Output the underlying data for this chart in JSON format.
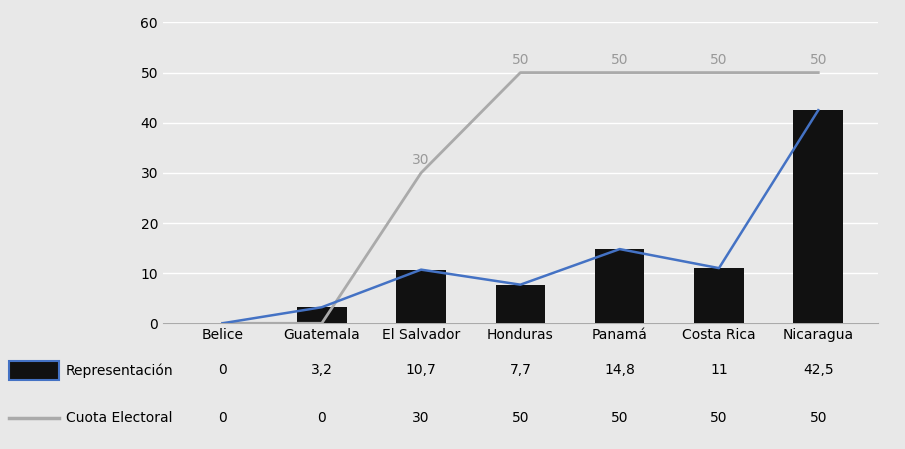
{
  "categories": [
    "Belice",
    "Guatemala",
    "El Salvador",
    "Honduras",
    "Panamá",
    "Costa Rica",
    "Nicaragua"
  ],
  "representacion": [
    0,
    3.2,
    10.7,
    7.7,
    14.8,
    11,
    42.5
  ],
  "cuota_electoral": [
    0,
    0,
    30,
    50,
    50,
    50,
    50
  ],
  "bar_color": "#111111",
  "line_rep_color": "#4472c4",
  "line_cuota_color": "#aaaaaa",
  "ylim": [
    0,
    60
  ],
  "yticks": [
    0,
    10,
    20,
    30,
    40,
    50,
    60
  ],
  "legend_rep": "Representación",
  "legend_cuota": "Cuota Electoral",
  "background_color": "#e8e8e8",
  "legend_values_rep": [
    "0",
    "3,2",
    "10,7",
    "7,7",
    "14,8",
    "11",
    "42,5"
  ],
  "legend_values_cuota": [
    "0",
    "0",
    "30",
    "50",
    "50",
    "50",
    "50"
  ]
}
